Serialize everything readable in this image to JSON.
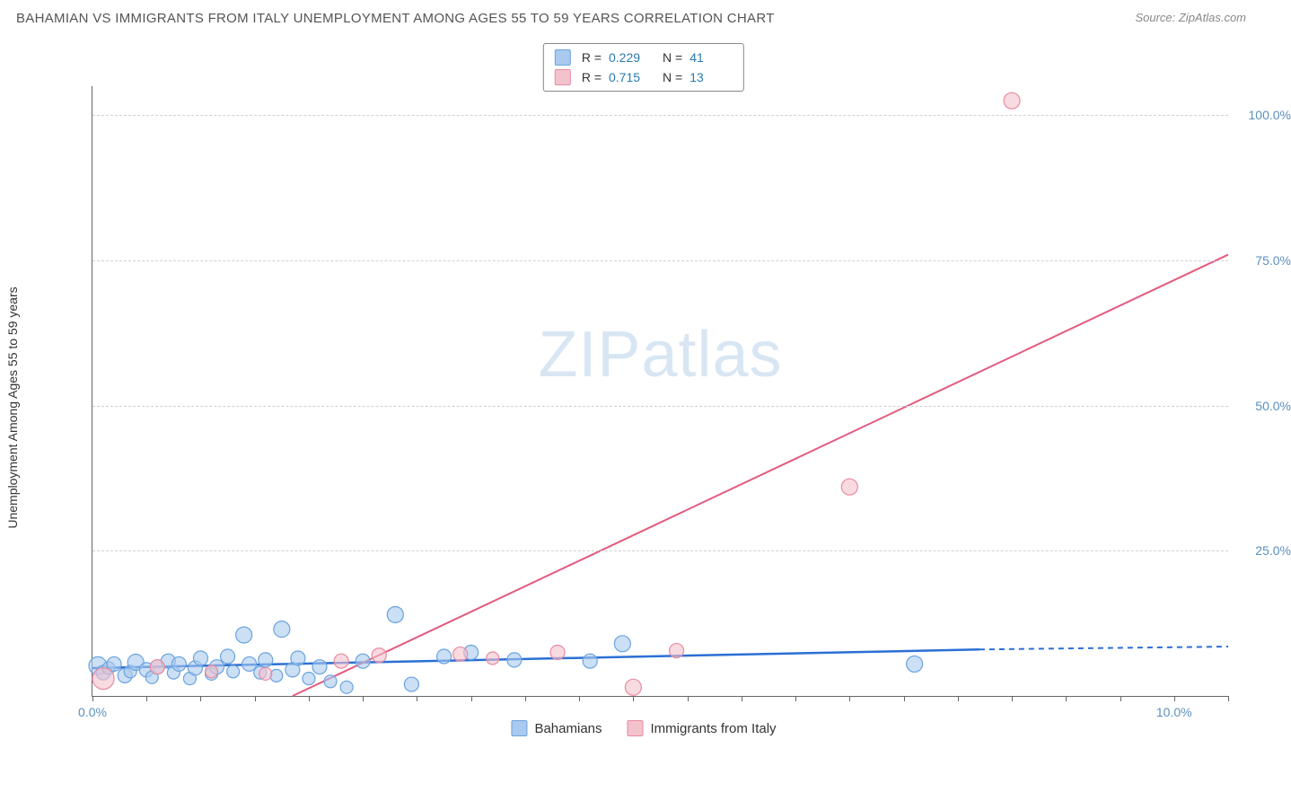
{
  "title": "BAHAMIAN VS IMMIGRANTS FROM ITALY UNEMPLOYMENT AMONG AGES 55 TO 59 YEARS CORRELATION CHART",
  "source": "Source: ZipAtlas.com",
  "watermark": "ZIPatlas",
  "chart": {
    "type": "scatter",
    "y_axis_label": "Unemployment Among Ages 55 to 59 years",
    "xlim": [
      0,
      10.5
    ],
    "ylim": [
      0,
      105
    ],
    "x_ticks": [
      {
        "v": 0,
        "label": "0.0%"
      },
      {
        "v": 10,
        "label": "10.0%"
      }
    ],
    "x_minor_step": 0.5,
    "y_ticks": [
      {
        "v": 25,
        "label": "25.0%"
      },
      {
        "v": 50,
        "label": "50.0%"
      },
      {
        "v": 75,
        "label": "75.0%"
      },
      {
        "v": 100,
        "label": "100.0%"
      }
    ],
    "tick_color": "#5b8fbf",
    "grid_color": "#d0d0d0",
    "series": [
      {
        "key": "bahamians",
        "label": "Bahamians",
        "fill": "#a9c9ee",
        "stroke": "#6aa3de",
        "line_stroke": "#2b6fd4",
        "line_width": 2.5,
        "r": 0.229,
        "n": 41,
        "trend": {
          "x1": 0,
          "y1": 4.8,
          "x2": 8.2,
          "y2": 8.0,
          "dash_x2": 10.5,
          "dash_y2": 8.5
        },
        "points": [
          {
            "x": 0.05,
            "y": 5.2,
            "r": 10
          },
          {
            "x": 0.1,
            "y": 4.0,
            "r": 8
          },
          {
            "x": 0.15,
            "y": 4.8,
            "r": 7
          },
          {
            "x": 0.2,
            "y": 5.5,
            "r": 8
          },
          {
            "x": 0.3,
            "y": 3.5,
            "r": 8
          },
          {
            "x": 0.35,
            "y": 4.2,
            "r": 7
          },
          {
            "x": 0.4,
            "y": 5.8,
            "r": 9
          },
          {
            "x": 0.5,
            "y": 4.5,
            "r": 8
          },
          {
            "x": 0.55,
            "y": 3.2,
            "r": 7
          },
          {
            "x": 0.6,
            "y": 5.0,
            "r": 8
          },
          {
            "x": 0.7,
            "y": 6.0,
            "r": 8
          },
          {
            "x": 0.75,
            "y": 4.0,
            "r": 7
          },
          {
            "x": 0.8,
            "y": 5.5,
            "r": 8
          },
          {
            "x": 0.9,
            "y": 3.0,
            "r": 7
          },
          {
            "x": 0.95,
            "y": 4.8,
            "r": 8
          },
          {
            "x": 1.0,
            "y": 6.5,
            "r": 8
          },
          {
            "x": 1.1,
            "y": 3.8,
            "r": 7
          },
          {
            "x": 1.15,
            "y": 5.0,
            "r": 8
          },
          {
            "x": 1.25,
            "y": 6.8,
            "r": 8
          },
          {
            "x": 1.3,
            "y": 4.2,
            "r": 7
          },
          {
            "x": 1.4,
            "y": 10.5,
            "r": 9
          },
          {
            "x": 1.45,
            "y": 5.5,
            "r": 8
          },
          {
            "x": 1.55,
            "y": 4.0,
            "r": 7
          },
          {
            "x": 1.6,
            "y": 6.2,
            "r": 8
          },
          {
            "x": 1.7,
            "y": 3.5,
            "r": 7
          },
          {
            "x": 1.75,
            "y": 11.5,
            "r": 9
          },
          {
            "x": 1.85,
            "y": 4.5,
            "r": 8
          },
          {
            "x": 1.9,
            "y": 6.5,
            "r": 8
          },
          {
            "x": 2.0,
            "y": 3.0,
            "r": 7
          },
          {
            "x": 2.1,
            "y": 5.0,
            "r": 8
          },
          {
            "x": 2.2,
            "y": 2.5,
            "r": 7
          },
          {
            "x": 2.35,
            "y": 1.5,
            "r": 7
          },
          {
            "x": 2.5,
            "y": 6.0,
            "r": 8
          },
          {
            "x": 2.8,
            "y": 14.0,
            "r": 9
          },
          {
            "x": 2.95,
            "y": 2.0,
            "r": 8
          },
          {
            "x": 3.25,
            "y": 6.8,
            "r": 8
          },
          {
            "x": 3.5,
            "y": 7.5,
            "r": 8
          },
          {
            "x": 3.9,
            "y": 6.2,
            "r": 8
          },
          {
            "x": 4.6,
            "y": 6.0,
            "r": 8
          },
          {
            "x": 4.9,
            "y": 9.0,
            "r": 9
          },
          {
            "x": 7.6,
            "y": 5.5,
            "r": 9
          }
        ]
      },
      {
        "key": "italy",
        "label": "Immigrants from Italy",
        "fill": "#f4c2cd",
        "stroke": "#e88ba1",
        "line_stroke": "#e35b7e",
        "line_width": 2,
        "r": 0.715,
        "n": 13,
        "trend": {
          "x1": 1.85,
          "y1": 0,
          "x2": 10.5,
          "y2": 76
        },
        "points": [
          {
            "x": 0.1,
            "y": 3.0,
            "r": 12
          },
          {
            "x": 0.6,
            "y": 5.0,
            "r": 8
          },
          {
            "x": 1.1,
            "y": 4.2,
            "r": 7
          },
          {
            "x": 1.6,
            "y": 3.8,
            "r": 7
          },
          {
            "x": 2.3,
            "y": 6.0,
            "r": 8
          },
          {
            "x": 2.65,
            "y": 7.0,
            "r": 8
          },
          {
            "x": 3.4,
            "y": 7.2,
            "r": 8
          },
          {
            "x": 3.7,
            "y": 6.5,
            "r": 7
          },
          {
            "x": 4.3,
            "y": 7.5,
            "r": 8
          },
          {
            "x": 5.0,
            "y": 1.5,
            "r": 9
          },
          {
            "x": 5.4,
            "y": 7.8,
            "r": 8
          },
          {
            "x": 7.0,
            "y": 36.0,
            "r": 9
          },
          {
            "x": 8.5,
            "y": 102.5,
            "r": 9
          }
        ]
      }
    ],
    "legend_bottom": [
      {
        "swatch_fill": "#a9c9ee",
        "swatch_stroke": "#6aa3de",
        "label": "Bahamians"
      },
      {
        "swatch_fill": "#f4c2cd",
        "swatch_stroke": "#e88ba1",
        "label": "Immigrants from Italy"
      }
    ]
  }
}
